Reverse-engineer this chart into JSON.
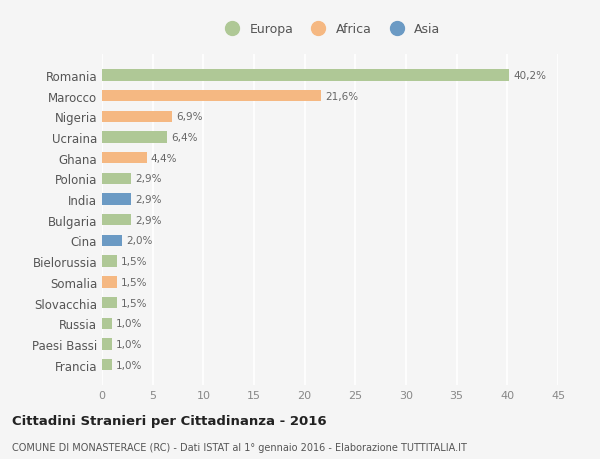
{
  "countries": [
    "Romania",
    "Marocco",
    "Nigeria",
    "Ucraina",
    "Ghana",
    "Polonia",
    "India",
    "Bulgaria",
    "Cina",
    "Bielorussia",
    "Somalia",
    "Slovacchia",
    "Russia",
    "Paesi Bassi",
    "Francia"
  ],
  "values": [
    40.2,
    21.6,
    6.9,
    6.4,
    4.4,
    2.9,
    2.9,
    2.9,
    2.0,
    1.5,
    1.5,
    1.5,
    1.0,
    1.0,
    1.0
  ],
  "labels": [
    "40,2%",
    "21,6%",
    "6,9%",
    "6,4%",
    "4,4%",
    "2,9%",
    "2,9%",
    "2,9%",
    "2,0%",
    "1,5%",
    "1,5%",
    "1,5%",
    "1,0%",
    "1,0%",
    "1,0%"
  ],
  "continents": [
    "Europa",
    "Africa",
    "Africa",
    "Europa",
    "Africa",
    "Europa",
    "Asia",
    "Europa",
    "Asia",
    "Europa",
    "Africa",
    "Europa",
    "Europa",
    "Europa",
    "Europa"
  ],
  "colors": {
    "Europa": "#afc896",
    "Africa": "#f5b882",
    "Asia": "#6b9ac4"
  },
  "xlim": [
    0,
    45
  ],
  "xticks": [
    0,
    5,
    10,
    15,
    20,
    25,
    30,
    35,
    40,
    45
  ],
  "title": "Cittadini Stranieri per Cittadinanza - 2016",
  "subtitle": "COMUNE DI MONASTERACE (RC) - Dati ISTAT al 1° gennaio 2016 - Elaborazione TUTTITALIA.IT",
  "background_color": "#f5f5f5",
  "grid_color": "#ffffff",
  "bar_height": 0.55
}
